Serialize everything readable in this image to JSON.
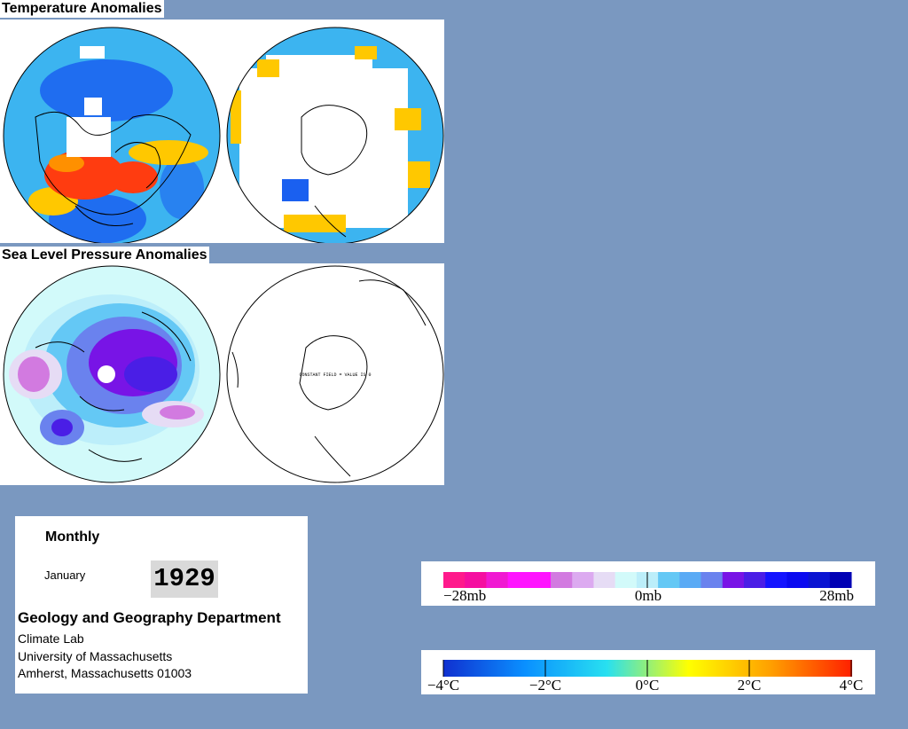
{
  "titles": {
    "temperature": "Temperature Anomalies",
    "pressure": "Sea Level Pressure Anomalies"
  },
  "slp_south_annotation": "CONSTANT FIELD = VALUE IS 0",
  "info": {
    "period": "Monthly",
    "month": "January",
    "year": "1929",
    "department": "Geology and Geography Department",
    "lab": "Climate Lab",
    "university": "University of Massachusetts",
    "address": "Amherst, Massachusetts 01003"
  },
  "pressure_legend": {
    "labels": {
      "left": "−28mb",
      "center": "0mb",
      "right": "28mb"
    },
    "colors": [
      "#ff1a8c",
      "#f50fa0",
      "#f019d2",
      "#ff14ff",
      "#ff14ff",
      "#d27ae0",
      "#dcaaf0",
      "#e6dcf5",
      "#d2fafa",
      "#bceefa",
      "#64c8f5",
      "#5aaaf5",
      "#6a82ee",
      "#7814e6",
      "#4a1ee6",
      "#1414ff",
      "#0a0af0",
      "#0a14d2",
      "#0000b4"
    ]
  },
  "temperature_legend": {
    "labels": [
      "−4°C",
      "−2°C",
      "0°C",
      "2°C",
      "4°C"
    ],
    "gradient": [
      "#1030d0",
      "#0a90ff",
      "#28e0f0",
      "#ffff00",
      "#ffa000",
      "#ff2000"
    ]
  },
  "colors": {
    "background": "#7a98c0",
    "ocean_anomaly": "#3cb4f0",
    "cold": "#1a60f0",
    "warm": "#ffc800",
    "hot": "#ff3c10",
    "no_data": "#ffffff"
  }
}
